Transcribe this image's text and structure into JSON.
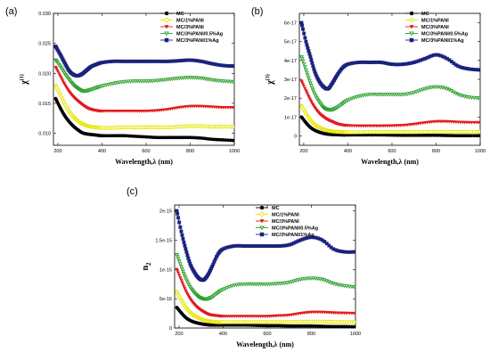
{
  "chart_data": [
    {
      "type": "line",
      "panel_label": "(a)",
      "xlabel": "Wavelength,λ (nm)",
      "ylabel": "χ(1)",
      "ylabel_main": "χ",
      "ylabel_sup": "(1)",
      "xlim": [
        180,
        1000
      ],
      "ylim": [
        0.008,
        0.03
      ],
      "xticks": [
        200,
        400,
        600,
        800,
        1000
      ],
      "yticks": [
        0.01,
        0.015,
        0.02,
        0.025,
        0.03
      ],
      "ytick_labels": [
        "0.010",
        "0.015",
        "0.020",
        "0.025",
        "0.030"
      ],
      "legend_position": "top-right",
      "x": [
        190,
        210,
        230,
        250,
        270,
        290,
        310,
        330,
        350,
        375,
        400,
        450,
        500,
        550,
        600,
        650,
        700,
        750,
        800,
        850,
        900,
        950,
        1000
      ],
      "series": [
        {
          "name": "MC",
          "color": "#000000",
          "marker": "circle-filled",
          "values": [
            0.0158,
            0.0143,
            0.013,
            0.012,
            0.0112,
            0.0106,
            0.0101,
            0.0099,
            0.0098,
            0.0097,
            0.0096,
            0.0096,
            0.0096,
            0.0095,
            0.0094,
            0.0093,
            0.0093,
            0.0093,
            0.0093,
            0.0092,
            0.009,
            0.0089,
            0.0088
          ]
        },
        {
          "name": "MC/1%PANI",
          "color": "#e6e600",
          "marker": "circle-open",
          "values": [
            0.018,
            0.0165,
            0.015,
            0.0137,
            0.0128,
            0.0121,
            0.0116,
            0.0113,
            0.0111,
            0.011,
            0.0109,
            0.0109,
            0.011,
            0.011,
            0.011,
            0.011,
            0.011,
            0.0111,
            0.0112,
            0.0112,
            0.0111,
            0.0111,
            0.0111
          ]
        },
        {
          "name": "MC/3%PANI",
          "color": "#e31a1c",
          "marker": "triangle-down",
          "values": [
            0.021,
            0.0196,
            0.0182,
            0.017,
            0.0161,
            0.0154,
            0.0148,
            0.0143,
            0.014,
            0.0138,
            0.0137,
            0.0137,
            0.0137,
            0.0137,
            0.0137,
            0.0138,
            0.014,
            0.0143,
            0.0145,
            0.0145,
            0.0144,
            0.0143,
            0.0143
          ]
        },
        {
          "name": "MC/3%PANI/0.5%Ag",
          "color": "#2ca02c",
          "marker": "triangle-down-open",
          "values": [
            0.0222,
            0.0212,
            0.02,
            0.019,
            0.0181,
            0.0175,
            0.0171,
            0.0171,
            0.0173,
            0.0176,
            0.0179,
            0.0183,
            0.0186,
            0.0187,
            0.0187,
            0.0188,
            0.019,
            0.0192,
            0.0193,
            0.0192,
            0.0189,
            0.0187,
            0.0186
          ]
        },
        {
          "name": "MC/3%PANI/1%Ag",
          "color": "#1a237e",
          "marker": "square-filled",
          "values": [
            0.0245,
            0.0232,
            0.0218,
            0.0205,
            0.0198,
            0.0196,
            0.0199,
            0.0205,
            0.0211,
            0.0215,
            0.0218,
            0.022,
            0.022,
            0.022,
            0.022,
            0.022,
            0.022,
            0.0221,
            0.0222,
            0.022,
            0.0216,
            0.0213,
            0.0212
          ]
        }
      ]
    },
    {
      "type": "line",
      "panel_label": "(b)",
      "xlabel": "Wavelength,λ (nm)",
      "ylabel": "χ(3)",
      "ylabel_main": "χ",
      "ylabel_sup": "(3)",
      "xlim": [
        180,
        1000
      ],
      "ylim": [
        -5e-18,
        6.5e-17
      ],
      "xticks": [
        200,
        400,
        600,
        800,
        1000
      ],
      "yticks": [
        0,
        1e-17,
        2e-17,
        3e-17,
        4e-17,
        5e-17,
        6e-17
      ],
      "ytick_labels": [
        "0",
        "1e-17",
        "2e-17",
        "3e-17",
        "4e-17",
        "5e-17",
        "6e-17"
      ],
      "legend_position": "top-right",
      "x": [
        190,
        210,
        230,
        250,
        270,
        290,
        310,
        330,
        350,
        375,
        400,
        450,
        500,
        550,
        600,
        650,
        700,
        750,
        800,
        850,
        900,
        950,
        1000
      ],
      "series": [
        {
          "name": "MC",
          "color": "#000000",
          "marker": "circle-filled",
          "values": [
            1e-17,
            7e-18,
            4.5e-18,
            3e-18,
            2e-18,
            1.3e-18,
            9e-19,
            7e-19,
            6e-19,
            5e-19,
            5e-19,
            5e-19,
            5e-19,
            5e-19,
            4e-19,
            3e-19,
            3e-19,
            3e-19,
            3e-19,
            2e-19,
            1e-19,
            1e-19,
            1e-19
          ]
        },
        {
          "name": "MC/1%PANI",
          "color": "#e6e600",
          "marker": "circle-open",
          "values": [
            1.6e-17,
            1.2e-17,
            8.5e-18,
            6e-18,
            4.5e-18,
            3.5e-18,
            2.8e-18,
            2.4e-18,
            2.2e-18,
            2e-18,
            1.9e-18,
            1.9e-18,
            2e-18,
            2e-18,
            2e-18,
            2e-18,
            2e-18,
            2.1e-18,
            2.2e-18,
            2.2e-18,
            2.1e-18,
            2.1e-18,
            2.1e-18
          ]
        },
        {
          "name": "MC/3%PANI",
          "color": "#e31a1c",
          "marker": "triangle-down",
          "values": [
            2.9e-17,
            2.4e-17,
            1.9e-17,
            1.5e-17,
            1.2e-17,
            1e-17,
            8.5e-18,
            7.5e-18,
            6.5e-18,
            5.8e-18,
            5.5e-18,
            5.3e-18,
            5.3e-18,
            5.3e-18,
            5.4e-18,
            5.6e-18,
            6.2e-18,
            7e-18,
            7.6e-18,
            7.6e-18,
            7.3e-18,
            7.1e-18,
            7.1e-18
          ]
        },
        {
          "name": "MC/3%PANI/0.5%Ag",
          "color": "#2ca02c",
          "marker": "triangle-down-open",
          "values": [
            4.2e-17,
            3.5e-17,
            2.8e-17,
            2.2e-17,
            1.8e-17,
            1.5e-17,
            1.4e-17,
            1.4e-17,
            1.5e-17,
            1.7e-17,
            1.9e-17,
            2.1e-17,
            2.2e-17,
            2.2e-17,
            2.2e-17,
            2.2e-17,
            2.3e-17,
            2.5e-17,
            2.6e-17,
            2.5e-17,
            2.2e-17,
            2.05e-17,
            2e-17
          ]
        },
        {
          "name": "MC/3%PANI/1%Ag",
          "color": "#1a237e",
          "marker": "square-filled",
          "values": [
            6e-17,
            5e-17,
            4.2e-17,
            3.4e-17,
            2.9e-17,
            2.6e-17,
            2.5e-17,
            2.8e-17,
            3.2e-17,
            3.6e-17,
            3.8e-17,
            3.9e-17,
            3.9e-17,
            3.9e-17,
            3.8e-17,
            3.8e-17,
            3.9e-17,
            4.1e-17,
            4.3e-17,
            4.1e-17,
            3.7e-17,
            3.55e-17,
            3.5e-17
          ]
        }
      ]
    },
    {
      "type": "line",
      "panel_label": "(c)",
      "xlabel": "Wavelength,λ (nm)",
      "ylabel": "n2",
      "ylabel_main": "n",
      "ylabel_sub": "2",
      "xlim": [
        180,
        1000
      ],
      "ylim": [
        0,
        2.1e-15
      ],
      "xticks": [
        200,
        400,
        600,
        800,
        1000
      ],
      "yticks": [
        0,
        5e-16,
        1e-15,
        1.5e-15,
        2e-15
      ],
      "ytick_labels": [
        "0",
        "5e-16",
        "1e-15",
        "1.5e-15",
        "2e-15"
      ],
      "legend_position": "top-right",
      "x": [
        190,
        210,
        230,
        250,
        270,
        290,
        310,
        330,
        350,
        375,
        400,
        450,
        500,
        550,
        600,
        650,
        700,
        750,
        800,
        850,
        900,
        950,
        1000
      ],
      "series": [
        {
          "name": "MC",
          "color": "#000000",
          "marker": "circle-filled",
          "values": [
            3.5e-16,
            2.6e-16,
            1.8e-16,
            1.3e-16,
            1e-16,
            8e-17,
            6.5e-17,
            5.5e-17,
            5e-17,
            5e-17,
            5e-17,
            5e-17,
            5e-17,
            4.5e-17,
            4e-17,
            4e-17,
            3.5e-17,
            3.5e-17,
            3.5e-17,
            3e-17,
            2.5e-17,
            2.5e-17,
            2e-17
          ]
        },
        {
          "name": "MC/1%PANI",
          "color": "#e6e600",
          "marker": "circle-open",
          "values": [
            6.2e-16,
            4.8e-16,
            3.6e-16,
            2.7e-16,
            2.1e-16,
            1.7e-16,
            1.4e-16,
            1.2e-16,
            1.1e-16,
            1e-16,
            1e-16,
            1e-16,
            1e-16,
            1e-16,
            1e-16,
            1e-16,
            1e-16,
            1.05e-16,
            1.1e-16,
            1.1e-16,
            1.05e-16,
            1e-16,
            1e-16
          ]
        },
        {
          "name": "MC/3%PANI",
          "color": "#e31a1c",
          "marker": "triangle-down",
          "values": [
            1e-15,
            8.2e-16,
            6.4e-16,
            5e-16,
            4e-16,
            3.3e-16,
            2.8e-16,
            2.4e-16,
            2.2e-16,
            2.1e-16,
            2e-16,
            2e-16,
            2e-16,
            2e-16,
            2e-16,
            2.1e-16,
            2.2e-16,
            2.5e-16,
            2.7e-16,
            2.7e-16,
            2.6e-16,
            2.55e-16,
            2.5e-16
          ]
        },
        {
          "name": "MC/3%PANI/0.5%Ag",
          "color": "#2ca02c",
          "marker": "triangle-down-open",
          "values": [
            1.25e-15,
            1.05e-15,
            8.5e-16,
            7e-16,
            6e-16,
            5.3e-16,
            5e-16,
            5e-16,
            5.3e-16,
            6e-16,
            6.6e-16,
            7.3e-16,
            7.5e-16,
            7.5e-16,
            7.5e-16,
            7.6e-16,
            7.8e-16,
            8.3e-16,
            8.5e-16,
            8.3e-16,
            7.6e-16,
            7.2e-16,
            7e-16
          ]
        },
        {
          "name": "MC/3%PANI/1%Ag",
          "color": "#1a237e",
          "marker": "square-filled",
          "values": [
            2e-15,
            1.65e-15,
            1.35e-15,
            1.1e-15,
            9.5e-16,
            8.5e-16,
            8.2e-16,
            9e-16,
            1.05e-15,
            1.25e-15,
            1.35e-15,
            1.4e-15,
            1.4e-15,
            1.4e-15,
            1.4e-15,
            1.4e-15,
            1.42e-15,
            1.5e-15,
            1.55e-15,
            1.5e-15,
            1.35e-15,
            1.3e-15,
            1.3e-15
          ]
        }
      ]
    }
  ]
}
